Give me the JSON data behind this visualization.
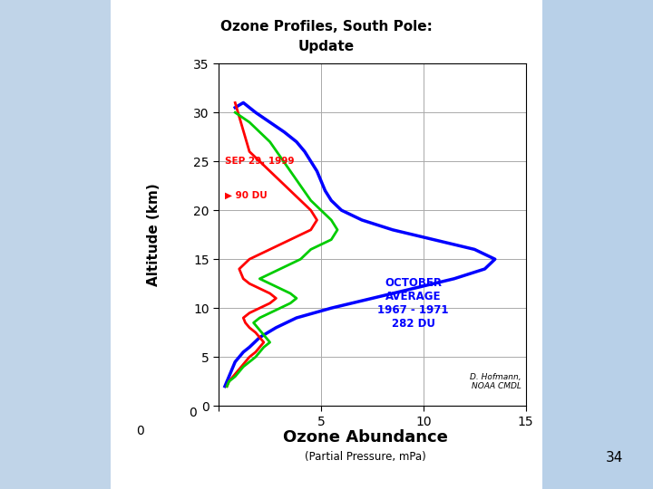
{
  "title_line1": "Ozone Profiles, South Pole:",
  "title_line2": "Update",
  "xlabel": "Ozone Abundance",
  "xlabel2": "(Partial Pressure, mPa)",
  "ylabel": "Altitude (km)",
  "xlim": [
    0,
    15
  ],
  "ylim": [
    0,
    35
  ],
  "xticks": [
    0,
    5,
    10,
    15
  ],
  "yticks": [
    0,
    5,
    10,
    15,
    20,
    25,
    30,
    35
  ],
  "background_color": "#dce8f4",
  "plot_bg_color": "#ffffff",
  "grid_color": "#aaaaaa",
  "annotation_red": "SEP 29, 1999",
  "annotation_red2": "▶ 90 DU",
  "annotation_blue": "OCTOBER\nAVERAGE\n1967 - 1971\n282 DU",
  "annotation_credit": "D. Hofmann,\nNOAA CMDL",
  "page_number": "34",
  "blue_curve": {
    "ozone": [
      0.3,
      0.4,
      0.5,
      0.6,
      0.7,
      0.8,
      1.0,
      1.2,
      1.5,
      2.0,
      2.8,
      3.8,
      5.5,
      7.5,
      9.5,
      11.5,
      13.0,
      13.5,
      12.5,
      10.5,
      8.5,
      7.0,
      6.0,
      5.5,
      5.2,
      5.0,
      4.8,
      4.5,
      4.2,
      3.8,
      3.2,
      2.5,
      1.8,
      1.2,
      0.8
    ],
    "altitude": [
      2,
      2.5,
      3,
      3.5,
      4,
      4.5,
      5,
      5.5,
      6,
      7,
      8,
      9,
      10,
      11,
      12,
      13,
      14,
      15,
      16,
      17,
      18,
      19,
      20,
      21,
      22,
      23,
      24,
      25,
      26,
      27,
      28,
      29,
      30,
      31,
      30.5
    ],
    "color": "#0000ff",
    "linewidth": 2.5
  },
  "red_curve": {
    "ozone": [
      0.4,
      0.5,
      0.7,
      0.9,
      1.1,
      1.3,
      1.5,
      1.8,
      2.0,
      2.2,
      2.0,
      1.8,
      1.5,
      1.3,
      1.2,
      1.5,
      2.0,
      2.5,
      2.8,
      2.5,
      2.0,
      1.5,
      1.2,
      1.0,
      1.5,
      2.5,
      3.5,
      4.5,
      4.8,
      4.5,
      3.5,
      2.5,
      1.5,
      0.8
    ],
    "altitude": [
      2,
      2.5,
      3,
      3.5,
      4,
      4.5,
      5,
      5.5,
      6,
      6.5,
      7,
      7.5,
      8,
      8.5,
      9,
      9.5,
      10,
      10.5,
      11,
      11.5,
      12,
      12.5,
      13,
      14,
      15,
      16,
      17,
      18,
      19,
      20,
      22,
      24,
      26,
      31
    ],
    "color": "#ff0000",
    "linewidth": 2.0
  },
  "green_curve": {
    "ozone": [
      0.4,
      0.5,
      0.8,
      1.0,
      1.2,
      1.5,
      1.8,
      2.0,
      2.2,
      2.5,
      2.3,
      2.1,
      1.9,
      1.7,
      2.0,
      2.5,
      3.0,
      3.5,
      3.8,
      3.5,
      3.0,
      2.5,
      2.0,
      2.5,
      3.0,
      3.5,
      4.0,
      4.5,
      5.5,
      5.8,
      5.5,
      4.5,
      3.5,
      2.5,
      1.5,
      0.8
    ],
    "altitude": [
      2,
      2.5,
      3,
      3.5,
      4,
      4.5,
      5,
      5.5,
      6,
      6.5,
      7,
      7.5,
      8,
      8.5,
      9,
      9.5,
      10,
      10.5,
      11,
      11.5,
      12,
      12.5,
      13,
      13.5,
      14,
      14.5,
      15,
      16,
      17,
      18,
      19,
      21,
      24,
      27,
      29,
      30
    ],
    "color": "#00cc00",
    "linewidth": 2.0
  },
  "left_bg": "#b8cfe0",
  "right_bg": "#b8d4e8",
  "center_bg": "#f0f4f8"
}
